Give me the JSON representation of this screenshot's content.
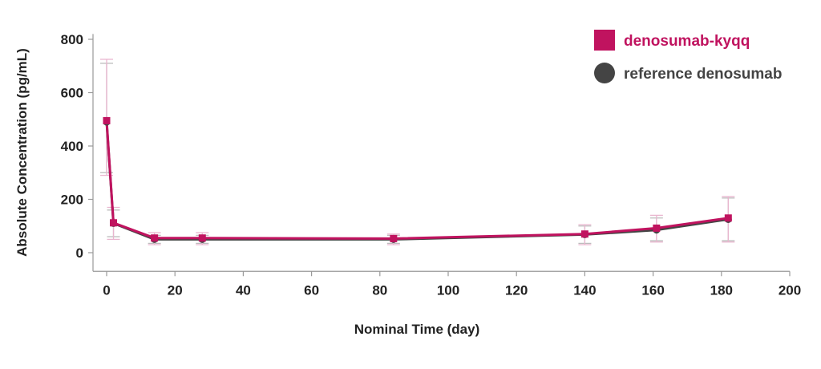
{
  "chart_data": {
    "type": "line",
    "title": "",
    "xlabel": "Nominal Time (day)",
    "ylabel": "Absolute Concentration (pg/mL)",
    "xlim": [
      0,
      200
    ],
    "ylim": [
      -70,
      820
    ],
    "xticks": [
      0,
      20,
      40,
      60,
      80,
      100,
      120,
      140,
      160,
      180,
      200
    ],
    "yticks": [
      0,
      200,
      400,
      600,
      800
    ],
    "grid": false,
    "legend_position": "top-right",
    "series": [
      {
        "name": "reference denosumab",
        "color": "#444444",
        "marker": "circle",
        "points": [
          {
            "x": 0,
            "y": 490,
            "err_low": 300,
            "err_high": 710
          },
          {
            "x": 2,
            "y": 110,
            "err_low": 60,
            "err_high": 160
          },
          {
            "x": 14,
            "y": 50,
            "err_low": 35,
            "err_high": 65
          },
          {
            "x": 28,
            "y": 50,
            "err_low": 35,
            "err_high": 65
          },
          {
            "x": 84,
            "y": 50,
            "err_low": 35,
            "err_high": 65
          },
          {
            "x": 140,
            "y": 68,
            "err_low": 35,
            "err_high": 100
          },
          {
            "x": 161,
            "y": 85,
            "err_low": 45,
            "err_high": 130
          },
          {
            "x": 182,
            "y": 125,
            "err_low": 45,
            "err_high": 205
          }
        ]
      },
      {
        "name": "denosumab-kyqq",
        "color": "#c0135f",
        "marker": "square",
        "points": [
          {
            "x": 0,
            "y": 495,
            "err_low": 290,
            "err_high": 725
          },
          {
            "x": 2,
            "y": 112,
            "err_low": 50,
            "err_high": 170
          },
          {
            "x": 14,
            "y": 55,
            "err_low": 30,
            "err_high": 75
          },
          {
            "x": 28,
            "y": 55,
            "err_low": 30,
            "err_high": 75
          },
          {
            "x": 84,
            "y": 53,
            "err_low": 30,
            "err_high": 70
          },
          {
            "x": 140,
            "y": 70,
            "err_low": 30,
            "err_high": 105
          },
          {
            "x": 161,
            "y": 92,
            "err_low": 40,
            "err_high": 140
          },
          {
            "x": 182,
            "y": 130,
            "err_low": 40,
            "err_high": 210
          }
        ]
      }
    ]
  }
}
